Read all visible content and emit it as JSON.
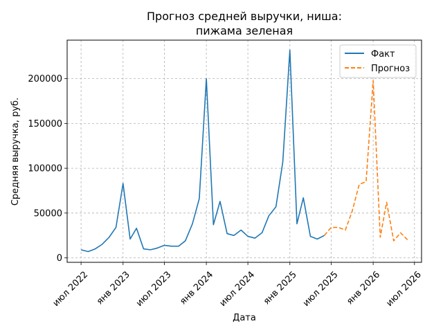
{
  "chart_data": {
    "type": "line",
    "title": "Прогноз средней выручки, ниша:\nпижама зеленая",
    "title_lines": [
      "Прогноз средней выручки, ниша:",
      "пижама зеленая"
    ],
    "xlabel": "Дата",
    "ylabel": "Средняя выручка, руб.",
    "x_tick_labels": [
      "июл 2022",
      "янв 2023",
      "июл 2023",
      "янв 2024",
      "июл 2024",
      "янв 2025",
      "июл 2025",
      "янв 2026",
      "июл 2026"
    ],
    "x_ticks": [
      "2022-07-01",
      "2023-01-01",
      "2023-07-01",
      "2024-01-01",
      "2024-07-01",
      "2025-01-01",
      "2025-07-01",
      "2026-01-01",
      "2026-07-01"
    ],
    "y_ticks": [
      0,
      50000,
      100000,
      150000,
      200000
    ],
    "y_tick_labels": [
      "0",
      "50000",
      "100000",
      "150000",
      "200000"
    ],
    "xlim": [
      "2022-05-01",
      "2026-08-01"
    ],
    "ylim": [
      -5000,
      243000
    ],
    "grid": true,
    "legend_position": "top-right",
    "series": [
      {
        "name": "Факт",
        "color": "#1f77b4",
        "style": "solid",
        "points": [
          [
            "2022-07-01",
            9000
          ],
          [
            "2022-08-01",
            7000
          ],
          [
            "2022-09-01",
            10000
          ],
          [
            "2022-10-01",
            15000
          ],
          [
            "2022-11-01",
            23000
          ],
          [
            "2022-12-01",
            34000
          ],
          [
            "2023-01-01",
            83000
          ],
          [
            "2023-02-01",
            21000
          ],
          [
            "2023-03-01",
            33000
          ],
          [
            "2023-04-01",
            10000
          ],
          [
            "2023-05-01",
            9000
          ],
          [
            "2023-06-01",
            11000
          ],
          [
            "2023-07-01",
            14000
          ],
          [
            "2023-08-01",
            13000
          ],
          [
            "2023-09-01",
            13000
          ],
          [
            "2023-10-01",
            19000
          ],
          [
            "2023-11-01",
            38000
          ],
          [
            "2023-12-01",
            66000
          ],
          [
            "2024-01-01",
            200000
          ],
          [
            "2024-02-01",
            37000
          ],
          [
            "2024-03-01",
            63000
          ],
          [
            "2024-04-01",
            27000
          ],
          [
            "2024-05-01",
            25000
          ],
          [
            "2024-06-01",
            31000
          ],
          [
            "2024-07-01",
            24000
          ],
          [
            "2024-08-01",
            22000
          ],
          [
            "2024-09-01",
            28000
          ],
          [
            "2024-10-01",
            47000
          ],
          [
            "2024-11-01",
            57000
          ],
          [
            "2024-12-01",
            107000
          ],
          [
            "2025-01-01",
            232000
          ],
          [
            "2025-02-01",
            38000
          ],
          [
            "2025-03-01",
            67000
          ],
          [
            "2025-04-01",
            24000
          ],
          [
            "2025-05-01",
            21000
          ],
          [
            "2025-06-01",
            25000
          ]
        ]
      },
      {
        "name": "Прогноз",
        "color": "#ff7f0e",
        "style": "dashed",
        "points": [
          [
            "2025-06-01",
            25000
          ],
          [
            "2025-07-01",
            34000
          ],
          [
            "2025-08-01",
            34000
          ],
          [
            "2025-09-01",
            31000
          ],
          [
            "2025-10-01",
            52000
          ],
          [
            "2025-11-01",
            82000
          ],
          [
            "2025-12-01",
            85000
          ],
          [
            "2026-01-01",
            198000
          ],
          [
            "2026-02-01",
            23000
          ],
          [
            "2026-03-01",
            62000
          ],
          [
            "2026-04-01",
            19000
          ],
          [
            "2026-05-01",
            28000
          ],
          [
            "2026-06-01",
            20000
          ]
        ]
      }
    ]
  }
}
